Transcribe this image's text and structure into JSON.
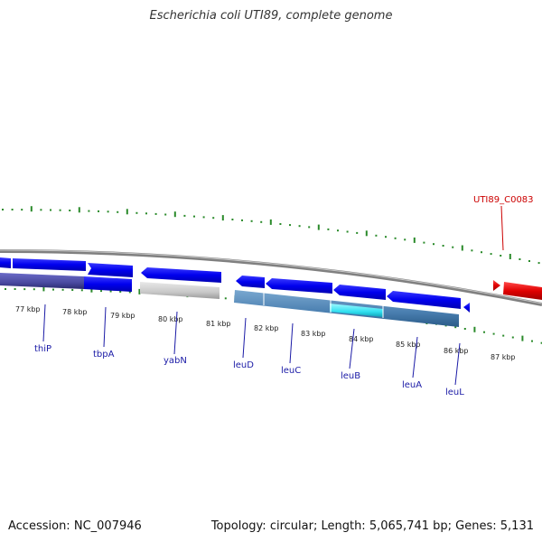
{
  "title": "Escherichia coli UTI89, complete genome",
  "footer": {
    "accession_label": "Accession:",
    "accession": "NC_007946",
    "topology_label": "Topology:",
    "topology": "circular",
    "length_label": "Length:",
    "length": "5,065,741 bp",
    "genes_label": "Genes:",
    "genes": "5,131"
  },
  "kbp_ticks": [
    "77 kbp",
    "78 kbp",
    "79 kbp",
    "80 kbp",
    "81 kbp",
    "82 kbp",
    "83 kbp",
    "84 kbp",
    "85 kbp",
    "86 kbp",
    "87 kbp"
  ],
  "genes": [
    "thiP",
    "tbpA",
    "yabN",
    "leuD",
    "leuC",
    "leuB",
    "leuA",
    "leuL"
  ],
  "upper_label": "UTI89_C0083",
  "colors": {
    "forward_cds": "#0000ee",
    "reverse_cds": "#e00000",
    "backbone": "#808080",
    "tick": "#2a8a2a",
    "label": "#1a1aa6",
    "feature_gray": "#c8c8c8",
    "feature_steel": "#4a7fb0",
    "feature_cyan": "#30e0f0",
    "feature_purple": "#4a4aa0"
  }
}
